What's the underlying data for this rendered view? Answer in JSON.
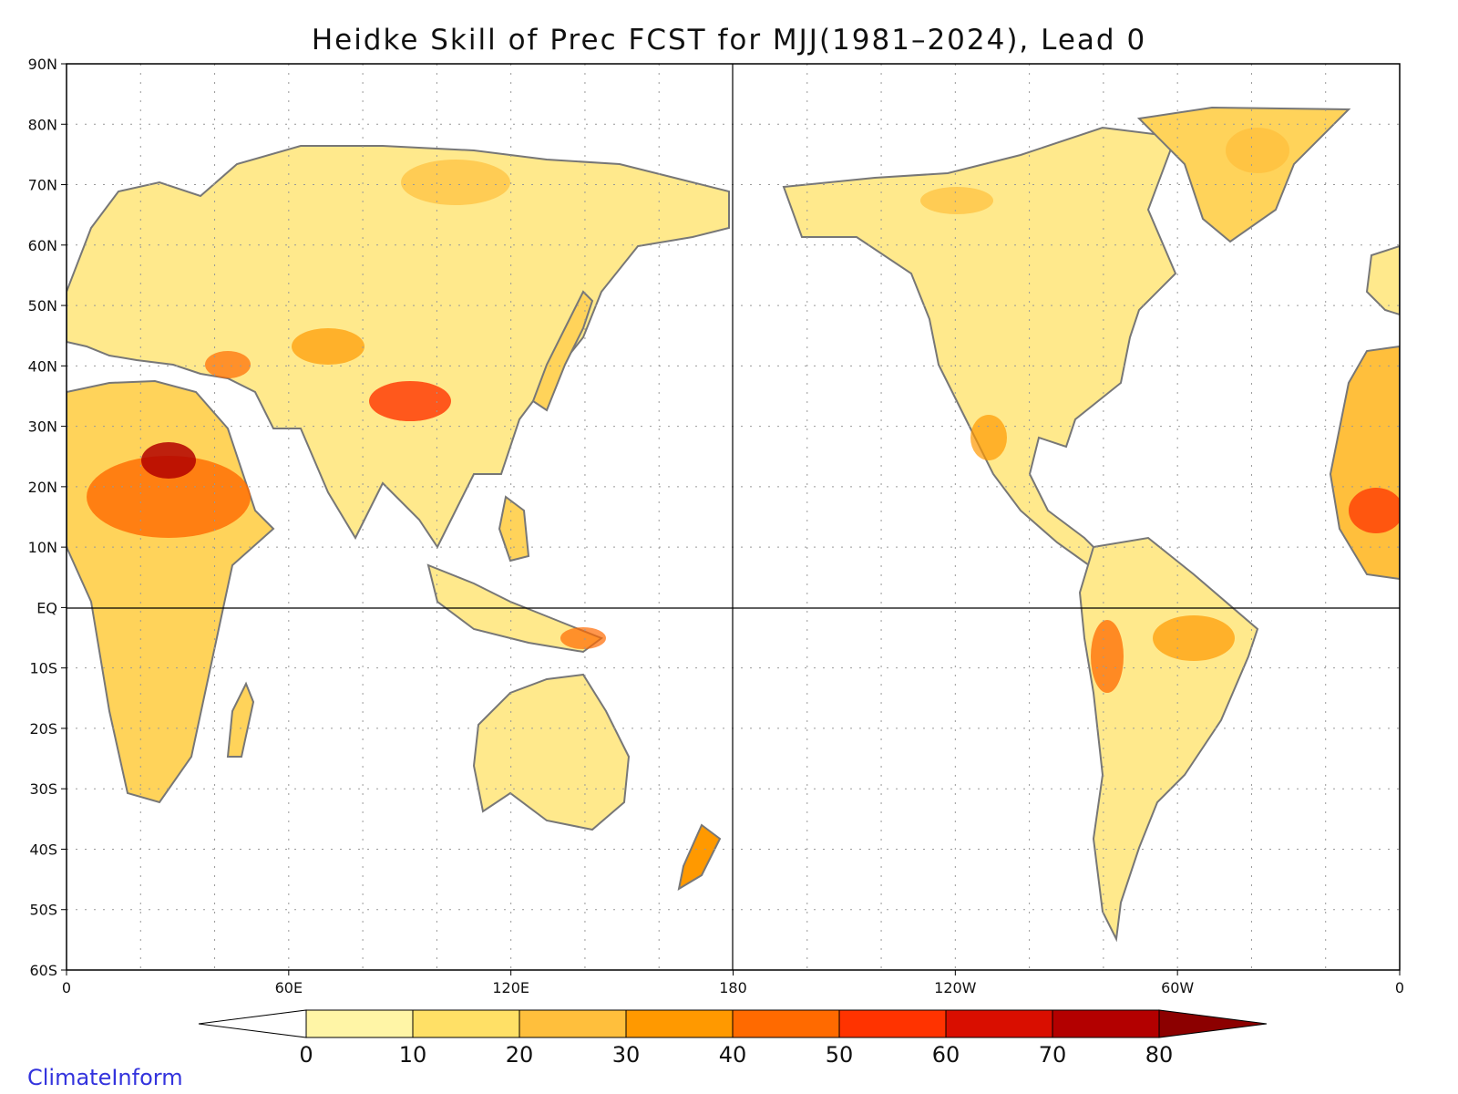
{
  "title": "Heidke Skill of Prec FCST for MJJ(1981–2024), Lead 0",
  "credit": "ClimateInform",
  "map": {
    "projection": "equirectangular",
    "lon_range": [
      0,
      360
    ],
    "lat_range": [
      -60,
      90
    ],
    "lat_ticks": [
      {
        "value": 90,
        "label": "90N"
      },
      {
        "value": 80,
        "label": "80N"
      },
      {
        "value": 70,
        "label": "70N"
      },
      {
        "value": 60,
        "label": "60N"
      },
      {
        "value": 50,
        "label": "50N"
      },
      {
        "value": 40,
        "label": "40N"
      },
      {
        "value": 30,
        "label": "30N"
      },
      {
        "value": 20,
        "label": "20N"
      },
      {
        "value": 10,
        "label": "10N"
      },
      {
        "value": 0,
        "label": "EQ"
      },
      {
        "value": -10,
        "label": "10S"
      },
      {
        "value": -20,
        "label": "20S"
      },
      {
        "value": -30,
        "label": "30S"
      },
      {
        "value": -40,
        "label": "40S"
      },
      {
        "value": -50,
        "label": "50S"
      },
      {
        "value": -60,
        "label": "60S"
      }
    ],
    "lon_ticks": [
      {
        "value": 0,
        "label": "0"
      },
      {
        "value": 60,
        "label": "60E"
      },
      {
        "value": 120,
        "label": "120E"
      },
      {
        "value": 180,
        "label": "180"
      },
      {
        "value": 240,
        "label": "120W"
      },
      {
        "value": 300,
        "label": "60W"
      },
      {
        "value": 360,
        "label": "0"
      }
    ],
    "grid_lines": "dotted"
  },
  "colorbar": {
    "levels": [
      "0",
      "10",
      "20",
      "30",
      "40",
      "50",
      "60",
      "70",
      "80"
    ],
    "colors": [
      "#ffffff",
      "#fff5a6",
      "#ffe066",
      "#ffbf3c",
      "#ff9900",
      "#ff6a00",
      "#ff3300",
      "#d90e00",
      "#b30000",
      "#8c0000"
    ]
  },
  "colors": {
    "coastline": "#777777",
    "frame": "#000000",
    "credit": "#3333dd"
  }
}
